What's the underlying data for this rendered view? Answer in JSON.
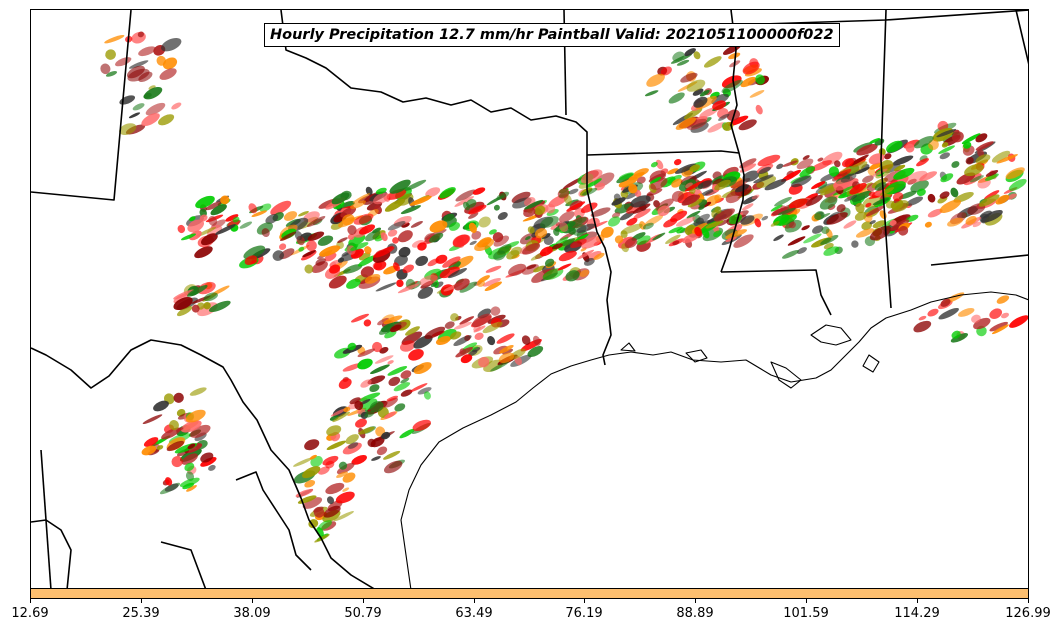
{
  "title": "Hourly Precipitation 12.7 mm/hr Paintball Valid: 2021051100000f022",
  "colorbar": {
    "fill_color": "#fdbf6f",
    "tick_labels": [
      "12.69",
      "25.39",
      "38.09",
      "50.79",
      "63.49",
      "76.19",
      "88.89",
      "101.59",
      "114.29",
      "126.99"
    ]
  },
  "colors": {
    "member_palette": [
      "#ff0000",
      "#ff8c00",
      "#00cc00",
      "#8b0000",
      "#9a9a00",
      "#1a7a1a",
      "#333333",
      "#ff6666",
      "#b22222"
    ],
    "background": "#ffffff",
    "boundaries": "#000000"
  },
  "map_layers": [
    "state-borders",
    "international-border",
    "gulf-coastline",
    "precipitation-paintballs"
  ]
}
